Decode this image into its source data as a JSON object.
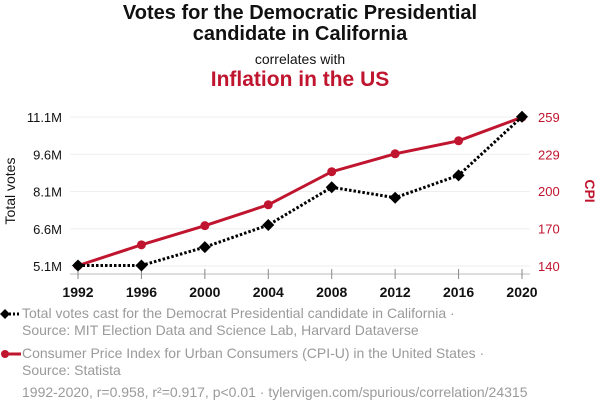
{
  "header": {
    "title_line1": "Votes for the Democratic Presidential",
    "title_line2": "candidate in California",
    "subtitle": "correlates with",
    "title2": "Inflation in the US"
  },
  "colors": {
    "series1": "#000000",
    "series2": "#c0152f",
    "grid": "#eeeeee",
    "muted_text": "#9a9a9a"
  },
  "chart_data": {
    "type": "line",
    "title": "Votes for the Democratic Presidential candidate in California correlates with Inflation in the US",
    "x": [
      1992,
      1996,
      2000,
      2004,
      2008,
      2012,
      2016,
      2020
    ],
    "xlabel": "",
    "x_ticks": [
      "1992",
      "1996",
      "2000",
      "2004",
      "2008",
      "2012",
      "2016",
      "2020"
    ],
    "y_left": {
      "label": "Total votes",
      "ticks": [
        "5.1M",
        "6.6M",
        "8.1M",
        "9.6M",
        "11.1M"
      ],
      "tick_values": [
        5.1,
        6.6,
        8.1,
        9.6,
        11.1
      ],
      "range": [
        5.1,
        11.1
      ],
      "units": "millions"
    },
    "y_right": {
      "label": "CPI",
      "ticks": [
        "140",
        "170",
        "200",
        "229",
        "259"
      ],
      "tick_values": [
        140,
        170,
        200,
        229,
        259
      ],
      "range": [
        140,
        259
      ]
    },
    "grid": true,
    "series": [
      {
        "name": "Total votes cast for the Democrat Presidential candidate in California",
        "axis": "left",
        "style": "dotted",
        "marker": "diamond",
        "values": [
          5.12,
          5.12,
          5.86,
          6.75,
          8.27,
          7.85,
          8.75,
          11.11
        ]
      },
      {
        "name": "Consumer Price Index for Urban Consumers (CPI-U) in the United States",
        "axis": "right",
        "style": "solid",
        "marker": "circle",
        "values": [
          140.3,
          156.9,
          172.2,
          188.9,
          215.3,
          229.6,
          240.0,
          258.8
        ]
      }
    ]
  },
  "legend": [
    {
      "line1": "Total votes cast for the Democrat Presidential candidate in California ·",
      "line2": "Source: MIT Election Data and Science Lab, Harvard Dataverse"
    },
    {
      "line1": "Consumer Price Index for Urban Consumers (CPI-U) in the United States ·",
      "line2": "Source: Statista"
    }
  ],
  "footer": "1992-2020, r=0.958, r²=0.917, p<0.01 · tylervigen.com/spurious/correlation/24315"
}
